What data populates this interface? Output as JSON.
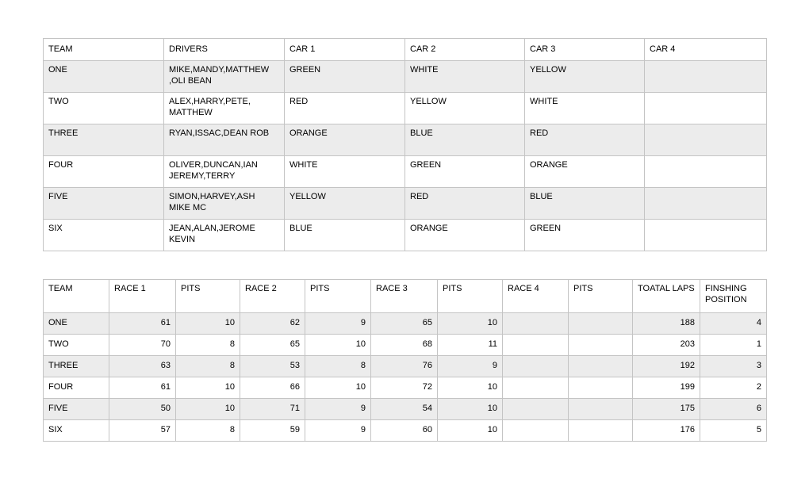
{
  "colors": {
    "page_background": "#ffffff",
    "stripe_row": "#ececec",
    "plain_row": "#ffffff",
    "grid_border": "#c4c4c4",
    "text": "#000000"
  },
  "teams_table": {
    "columns": [
      "TEAM",
      "DRIVERS",
      "CAR 1",
      "CAR 2",
      "CAR 3",
      "CAR 4"
    ],
    "rows": [
      {
        "team": "ONE",
        "drivers": "MIKE,MANDY,MATTHEW,OLI BEAN",
        "car1": "GREEN",
        "car2": "WHITE",
        "car3": "YELLOW",
        "car4": ""
      },
      {
        "team": "TWO",
        "drivers": "ALEX,HARRY,PETE, MATTHEW",
        "car1": "RED",
        "car2": "YELLOW",
        "car3": "WHITE",
        "car4": ""
      },
      {
        "team": "THREE",
        "drivers": "RYAN,ISSAC,DEAN ROB",
        "car1": "ORANGE",
        "car2": "BLUE",
        "car3": "RED",
        "car4": ""
      },
      {
        "team": "FOUR",
        "drivers": "OLIVER,DUNCAN,IAN JEREMY,TERRY",
        "car1": "WHITE",
        "car2": "GREEN",
        "car3": "ORANGE",
        "car4": ""
      },
      {
        "team": "FIVE",
        "drivers": "SIMON,HARVEY,ASH MIKE MC",
        "car1": "YELLOW",
        "car2": "RED",
        "car3": "BLUE",
        "car4": ""
      },
      {
        "team": "SIX",
        "drivers": "JEAN,ALAN,JEROME KEVIN",
        "car1": "BLUE",
        "car2": "ORANGE",
        "car3": "GREEN",
        "car4": ""
      }
    ]
  },
  "results_table": {
    "columns": [
      "TEAM",
      "RACE 1",
      "PITS",
      "RACE 2",
      "PITS",
      "RACE 3",
      "PITS",
      "RACE 4",
      "PITS",
      "TOATAL LAPS",
      "FINSHING POSITION"
    ],
    "rows": [
      [
        "ONE",
        "61",
        "10",
        "62",
        "9",
        "65",
        "10",
        "",
        "",
        "188",
        "4"
      ],
      [
        "TWO",
        "70",
        "8",
        "65",
        "10",
        "68",
        "11",
        "",
        "",
        "203",
        "1"
      ],
      [
        "THREE",
        "63",
        "8",
        "53",
        "8",
        "76",
        "9",
        "",
        "",
        "192",
        "3"
      ],
      [
        "FOUR",
        "61",
        "10",
        "66",
        "10",
        "72",
        "10",
        "",
        "",
        "199",
        "2"
      ],
      [
        "FIVE",
        "50",
        "10",
        "71",
        "9",
        "54",
        "10",
        "",
        "",
        "175",
        "6"
      ],
      [
        "SIX",
        "57",
        "8",
        "59",
        "9",
        "60",
        "10",
        "",
        "",
        "176",
        "5"
      ]
    ]
  },
  "chart_data": [
    {
      "type": "table",
      "columns": [
        "TEAM",
        "DRIVERS",
        "CAR 1",
        "CAR 2",
        "CAR 3",
        "CAR 4"
      ],
      "rows": [
        [
          "ONE",
          "MIKE,MANDY,MATTHEW,OLI BEAN",
          "GREEN",
          "WHITE",
          "YELLOW",
          ""
        ],
        [
          "TWO",
          "ALEX,HARRY,PETE, MATTHEW",
          "RED",
          "YELLOW",
          "WHITE",
          ""
        ],
        [
          "THREE",
          "RYAN,ISSAC,DEAN ROB",
          "ORANGE",
          "BLUE",
          "RED",
          ""
        ],
        [
          "FOUR",
          "OLIVER,DUNCAN,IAN JEREMY,TERRY",
          "WHITE",
          "GREEN",
          "ORANGE",
          ""
        ],
        [
          "FIVE",
          "SIMON,HARVEY,ASH MIKE MC",
          "YELLOW",
          "RED",
          "BLUE",
          ""
        ],
        [
          "SIX",
          "JEAN,ALAN,JEROME KEVIN",
          "BLUE",
          "ORANGE",
          "GREEN",
          ""
        ]
      ]
    },
    {
      "type": "table",
      "columns": [
        "TEAM",
        "RACE 1",
        "PITS",
        "RACE 2",
        "PITS",
        "RACE 3",
        "PITS",
        "RACE 4",
        "PITS",
        "TOATAL LAPS",
        "FINSHING POSITION"
      ],
      "rows": [
        [
          "ONE",
          61,
          10,
          62,
          9,
          65,
          10,
          null,
          null,
          188,
          4
        ],
        [
          "TWO",
          70,
          8,
          65,
          10,
          68,
          11,
          null,
          null,
          203,
          1
        ],
        [
          "THREE",
          63,
          8,
          53,
          8,
          76,
          9,
          null,
          null,
          192,
          3
        ],
        [
          "FOUR",
          61,
          10,
          66,
          10,
          72,
          10,
          null,
          null,
          199,
          2
        ],
        [
          "FIVE",
          50,
          10,
          71,
          9,
          54,
          10,
          null,
          null,
          175,
          6
        ],
        [
          "SIX",
          57,
          8,
          59,
          9,
          60,
          10,
          null,
          null,
          176,
          5
        ]
      ]
    }
  ]
}
